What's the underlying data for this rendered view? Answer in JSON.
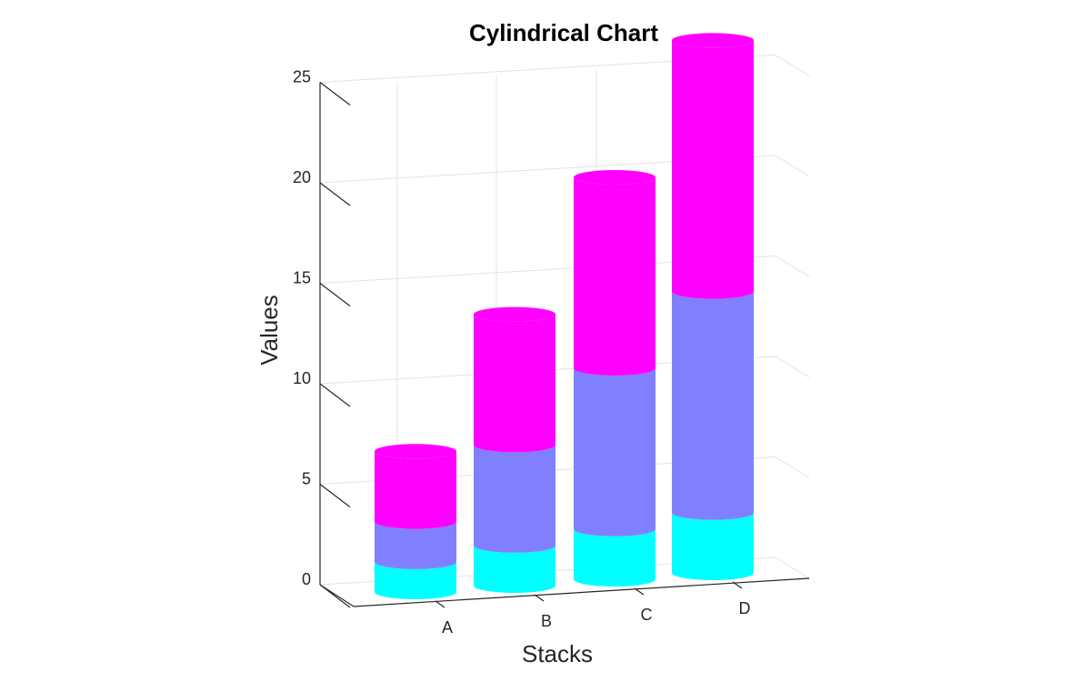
{
  "chart_data": {
    "type": "bar",
    "style": "3d-stacked-cylinders",
    "title": "Cylindrical Chart",
    "xlabel": "Stacks",
    "ylabel": "Values",
    "categories": [
      "A",
      "B",
      "C",
      "D"
    ],
    "series": [
      {
        "values": [
          1.5,
          2.0,
          2.5,
          3.0
        ],
        "color": "#00FFFF"
      },
      {
        "values": [
          2.0,
          5.0,
          8.0,
          11.0
        ],
        "color": "#8080FF"
      },
      {
        "values": [
          3.5,
          6.5,
          9.5,
          12.5
        ],
        "color": "#FF00FF"
      }
    ],
    "ylim": [
      0,
      25
    ],
    "yticks": [
      0,
      5,
      10,
      15,
      20,
      25
    ],
    "grid": true
  }
}
